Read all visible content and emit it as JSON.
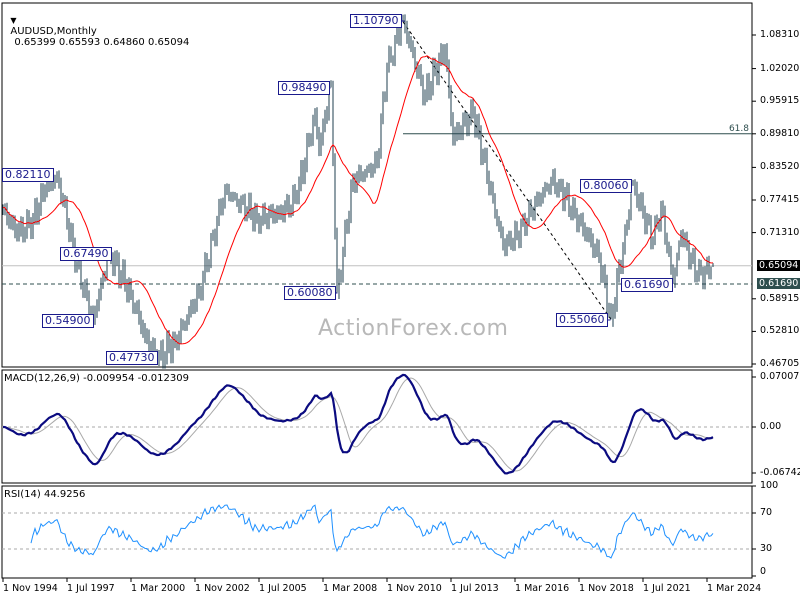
{
  "header": {
    "symbol": "AUDUSD,Monthly",
    "ohlc": "0.65399 0.65593 0.64860 0.65094",
    "menu_icon": "triangle-down-icon"
  },
  "watermark": "ActionForex.com",
  "chart_data": [
    {
      "type": "bar",
      "subtype": "ohlc-price",
      "title": "AUDUSD,Monthly",
      "last": {
        "open": 0.65399,
        "high": 0.65593,
        "low": 0.6486,
        "close": 0.65094
      },
      "ylim": [
        0.46705,
        1.0831
      ],
      "y_ticks": [
        "1.08310",
        "1.02020",
        "0.95915",
        "0.89810",
        "0.83520",
        "0.77415",
        "0.71310",
        "0.58915",
        "0.52810",
        "0.46705"
      ],
      "price_badges": [
        {
          "label": "0.65094",
          "value": 0.65094,
          "color": "#000000"
        },
        {
          "label": "0.61690",
          "value": 0.6169,
          "color": "#2f4f4f"
        }
      ],
      "fib_line": {
        "label": "61.8",
        "value": 0.8981
      },
      "trendline": {
        "from": {
          "date": "2011-07",
          "value": 1.1079
        },
        "to": {
          "date": "2020-03",
          "value": 0.5506
        }
      },
      "moving_average_color": "#ff0000",
      "bar_color": "#1f3f4f",
      "series": [
        {
          "x": [
            "1994-11",
            "1995-06",
            "1996-02",
            "1996-08",
            "1997-02",
            "1997-12",
            "1998-08",
            "1999-04",
            "2000-03",
            "2000-10",
            "2001-04",
            "2002-01",
            "2003-01",
            "2004-02",
            "2005-06",
            "2006-05",
            "2007-02",
            "2007-11",
            "2008-01",
            "2008-07",
            "2008-10",
            "2009-06",
            "2010-06",
            "2010-11",
            "2011-07",
            "2012-06",
            "2013-04",
            "2013-08",
            "2014-06",
            "2015-09",
            "2016-01",
            "2017-09",
            "2018-01",
            "2019-09",
            "2020-03",
            "2021-02",
            "2021-12",
            "2022-04",
            "2022-10",
            "2023-02",
            "2023-10",
            "2024-06"
          ],
          "values": [
            0.76,
            0.71,
            0.74,
            0.79,
            0.82,
            0.65,
            0.549,
            0.6749,
            0.6,
            0.52,
            0.4773,
            0.51,
            0.6,
            0.79,
            0.74,
            0.75,
            0.78,
            0.94,
            0.87,
            0.9849,
            0.6008,
            0.81,
            0.84,
            1.02,
            1.1079,
            0.97,
            1.06,
            0.89,
            0.94,
            0.69,
            0.69,
            0.81,
            0.8,
            0.67,
            0.5506,
            0.8006,
            0.7,
            0.76,
            0.6169,
            0.71,
            0.63,
            0.65094
          ]
        }
      ],
      "annotations": [
        {
          "label": "0.82110",
          "date": "1996-12"
        },
        {
          "label": "0.67490",
          "date": "1999-04"
        },
        {
          "label": "0.54900",
          "date": "1998-08"
        },
        {
          "label": "0.47730",
          "date": "2001-04"
        },
        {
          "label": "0.98490",
          "date": "2008-07"
        },
        {
          "label": "0.60080",
          "date": "2008-10"
        },
        {
          "label": "1.10790",
          "date": "2011-07"
        },
        {
          "label": "0.55060",
          "date": "2020-03"
        },
        {
          "label": "0.80060",
          "date": "2021-02"
        },
        {
          "label": "0.61690",
          "date": "2022-10"
        }
      ],
      "x_ticks": [
        "1 Nov 1994",
        "1 Jul 1997",
        "1 Mar 2000",
        "1 Nov 2002",
        "1 Jul 2005",
        "1 Mar 2008",
        "1 Nov 2010",
        "1 Jul 2013",
        "1 Mar 2016",
        "1 Nov 2018",
        "1 Jul 2021",
        "1 Mar 2024"
      ]
    },
    {
      "type": "line",
      "title": "MACD(12,26,9) -0.009954 -0.012309",
      "ylim": [
        -0.067423,
        0.070071
      ],
      "y_ticks": [
        "0.070071",
        "0.00",
        "-0.067423"
      ],
      "series_colors": {
        "macd": "#0b0b80",
        "signal": "#a9a9a9"
      }
    },
    {
      "type": "line",
      "title": "RSI(14) 44.9256",
      "ylim": [
        0,
        100
      ],
      "y_ticks": [
        "100",
        "70",
        "30",
        "0"
      ],
      "levels": [
        70,
        30
      ],
      "color": "#1e90ff"
    }
  ]
}
